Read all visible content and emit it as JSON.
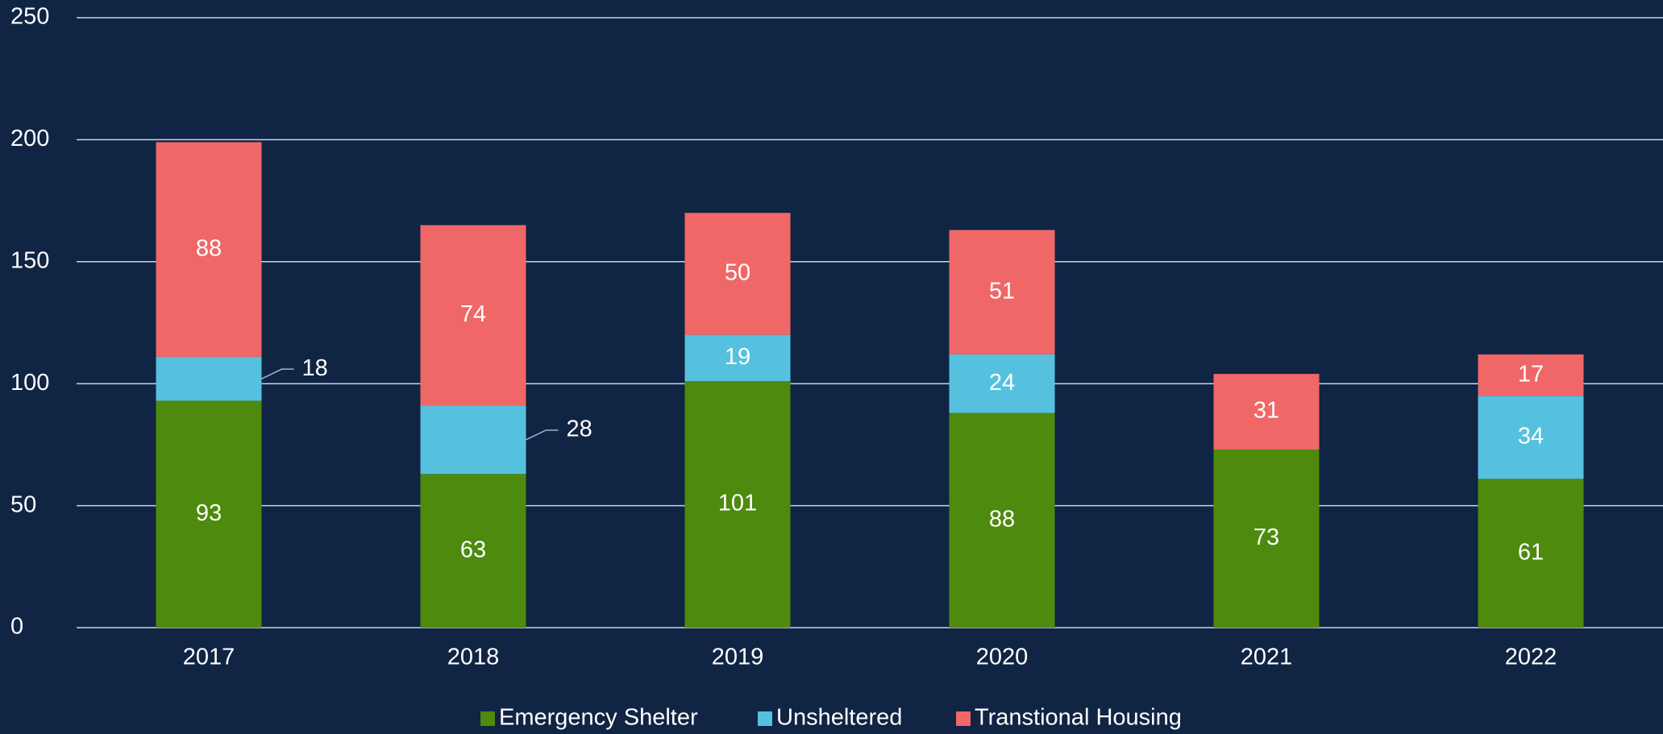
{
  "chart_data": {
    "type": "stacked_bar",
    "categories": [
      "2017",
      "2018",
      "2019",
      "2020",
      "2021",
      "2022"
    ],
    "series": [
      {
        "name": "Emergency Shelter",
        "color": "#4e8a0e",
        "values": [
          93,
          63,
          101,
          88,
          73,
          61
        ]
      },
      {
        "name": "Unsheltered",
        "color": "#56c1df",
        "values": [
          18,
          28,
          19,
          24,
          0,
          34
        ]
      },
      {
        "name": "Transtional Housing",
        "color": "#f06767",
        "values": [
          88,
          74,
          50,
          51,
          31,
          17
        ]
      }
    ],
    "ylim": [
      0,
      250
    ],
    "yticks": [
      0,
      50,
      100,
      150,
      200,
      250
    ],
    "grid": true,
    "legend": "bottom"
  }
}
